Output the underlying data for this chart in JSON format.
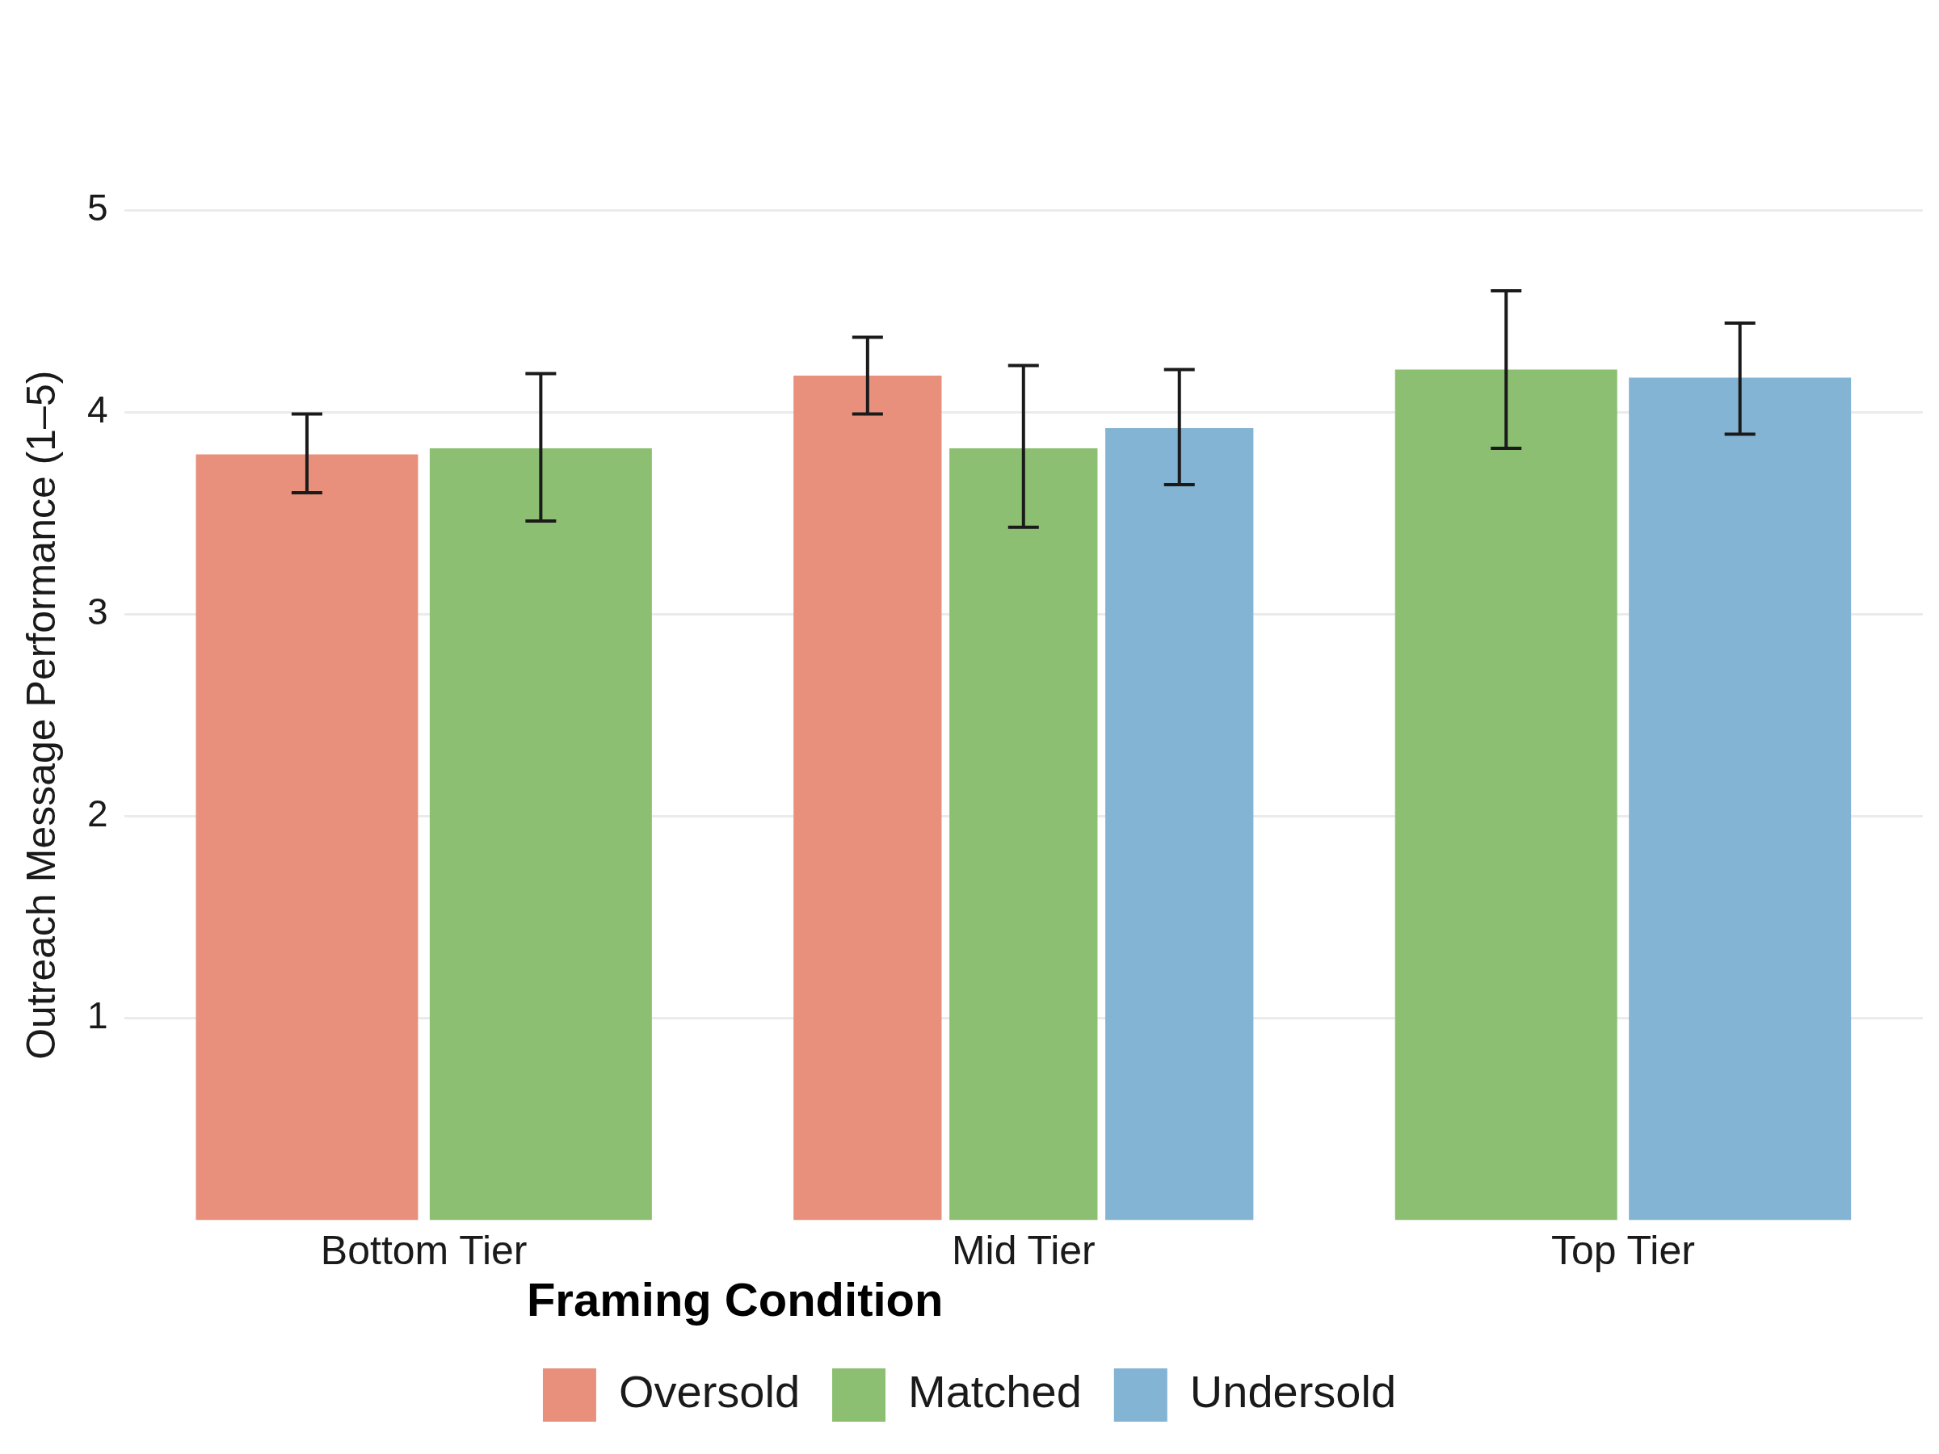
{
  "chart_data": {
    "type": "bar",
    "ylabel": "Outreach Message Performance (1–5)",
    "legend_title": "Framing Condition",
    "categories": [
      "Bottom Tier",
      "Mid Tier",
      "Top Tier"
    ],
    "series": [
      {
        "name": "Oversold",
        "color": "#e8907b",
        "values": [
          3.79,
          4.18,
          null
        ],
        "errors": [
          [
            3.6,
            3.99
          ],
          [
            3.99,
            4.37
          ],
          null
        ]
      },
      {
        "name": "Matched",
        "color": "#8cbf71",
        "values": [
          3.82,
          3.82,
          4.21
        ],
        "errors": [
          [
            3.46,
            4.19
          ],
          [
            3.43,
            4.23
          ],
          [
            3.82,
            4.6
          ]
        ]
      },
      {
        "name": "Undersold",
        "color": "#84b4d4",
        "values": [
          null,
          3.92,
          4.17
        ],
        "errors": [
          null,
          [
            3.64,
            4.21
          ],
          [
            3.89,
            4.44
          ]
        ]
      }
    ],
    "ylim": [
      0,
      5
    ],
    "yticks": [
      1,
      2,
      3,
      4,
      5
    ],
    "grid": "y",
    "legend": "bottom"
  }
}
